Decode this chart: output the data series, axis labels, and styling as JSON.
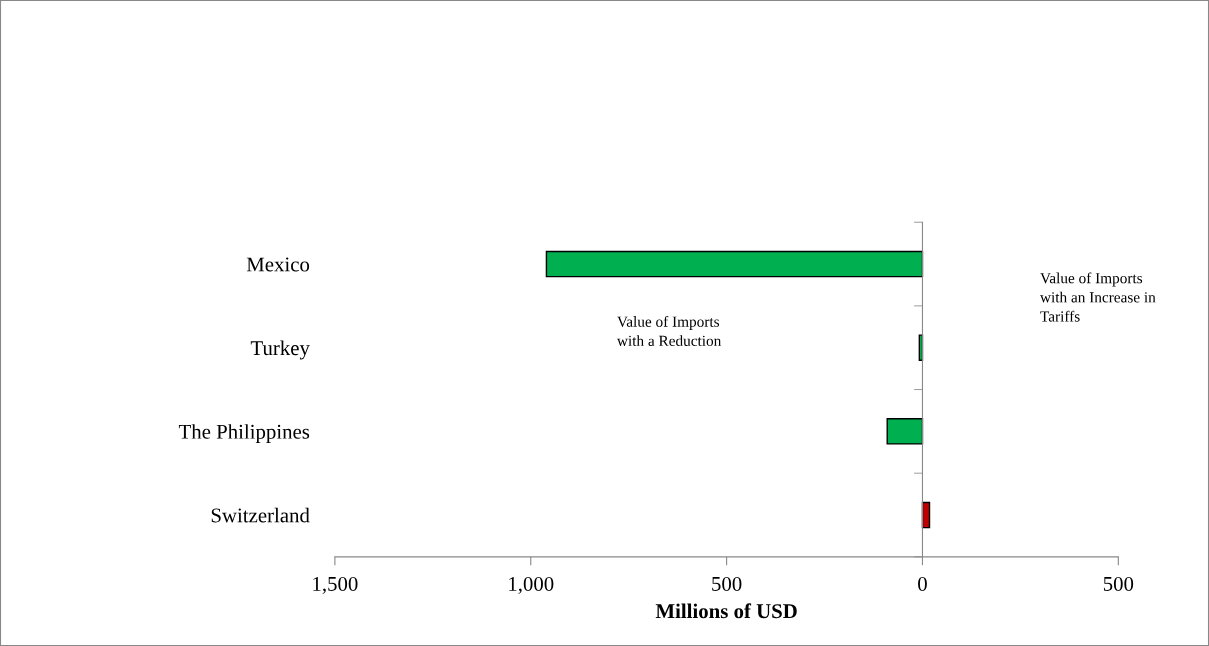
{
  "chart_data": {
    "type": "bar",
    "orientation": "horizontal",
    "categories": [
      "Mexico",
      "Turkey",
      "The Philippines",
      "Switzerland"
    ],
    "values": [
      -960,
      -8,
      -90,
      18
    ],
    "colors": [
      "#00b050",
      "#00b050",
      "#00b050",
      "#c00000"
    ],
    "xlim": [
      -1500,
      500
    ],
    "xticks": [
      {
        "value": -1500,
        "label": "1,500"
      },
      {
        "value": -1000,
        "label": "1,000"
      },
      {
        "value": -500,
        "label": "500"
      },
      0,
      500
    ],
    "xlabel": "Millions of USD",
    "annotations": [
      "Value of Imports\nwith a Reduction",
      "Value of Imports\nwith an Increase in\nTariffs"
    ],
    "legend": false
  }
}
